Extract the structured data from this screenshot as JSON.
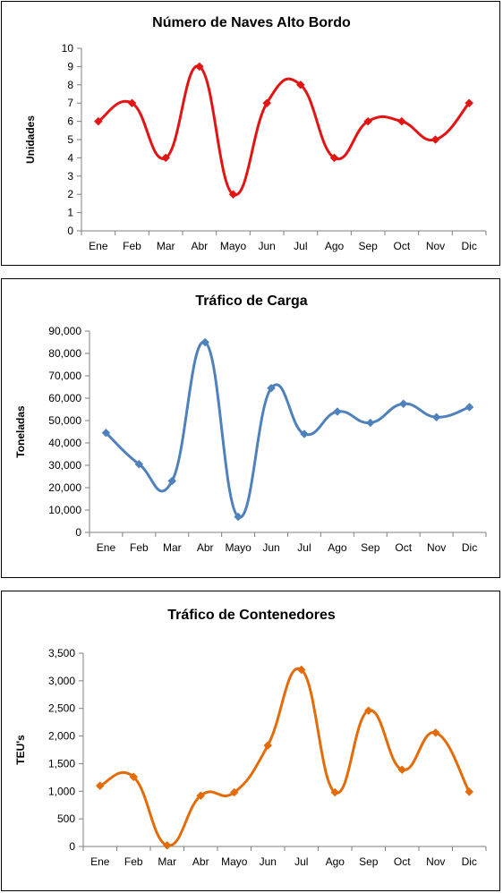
{
  "chart_data": [
    {
      "type": "line",
      "title": "Número de Naves Alto Bordo",
      "ylabel": "Unidades",
      "xlabel": "",
      "categories": [
        "Ene",
        "Feb",
        "Mar",
        "Abr",
        "Mayo",
        "Jun",
        "Jul",
        "Ago",
        "Sep",
        "Oct",
        "Nov",
        "Dic"
      ],
      "series": [
        {
          "values": [
            6,
            7,
            4,
            9,
            2,
            7,
            8,
            4,
            6,
            6,
            5,
            7
          ]
        }
      ],
      "ylim": [
        0,
        10
      ],
      "yticks": [
        "0",
        "1",
        "2",
        "3",
        "4",
        "5",
        "6",
        "7",
        "8",
        "9",
        "10"
      ],
      "ytick_values": [
        0,
        1,
        2,
        3,
        4,
        5,
        6,
        7,
        8,
        9,
        10
      ],
      "color": "#e31414",
      "smooth": true,
      "grid": false,
      "marker": "diamond"
    },
    {
      "type": "line",
      "title": "Tráfico de Carga",
      "ylabel": "Toneladas",
      "xlabel": "",
      "categories": [
        "Ene",
        "Feb",
        "Mar",
        "Abr",
        "Mayo",
        "Jun",
        "Jul",
        "Ago",
        "Sep",
        "Oct",
        "Nov",
        "Dic"
      ],
      "series": [
        {
          "values": [
            44500,
            30500,
            23000,
            85000,
            7000,
            64500,
            44000,
            54000,
            49000,
            57500,
            51500,
            56000
          ]
        }
      ],
      "ylim": [
        0,
        90000
      ],
      "yticks": [
        "0",
        "10,000",
        "20,000",
        "30,000",
        "40,000",
        "50,000",
        "60,000",
        "70,000",
        "80,000",
        "90,000"
      ],
      "ytick_values": [
        0,
        10000,
        20000,
        30000,
        40000,
        50000,
        60000,
        70000,
        80000,
        90000
      ],
      "color": "#4f81bd",
      "smooth": true,
      "grid": false,
      "marker": "diamond"
    },
    {
      "type": "line",
      "title": "Tráfico de Contenedores",
      "ylabel": "TEU's",
      "xlabel": "",
      "categories": [
        "Ene",
        "Feb",
        "Mar",
        "Abr",
        "Mayo",
        "Jun",
        "Jul",
        "Ago",
        "Sep",
        "Oct",
        "Nov",
        "Dic"
      ],
      "series": [
        {
          "values": [
            1100,
            1260,
            20,
            920,
            980,
            1830,
            3200,
            980,
            2460,
            1390,
            2060,
            990
          ]
        }
      ],
      "ylim": [
        0,
        3500
      ],
      "yticks": [
        "0",
        "500",
        "1,000",
        "1,500",
        "2,000",
        "2,500",
        "3,000",
        "3,500"
      ],
      "ytick_values": [
        0,
        500,
        1000,
        1500,
        2000,
        2500,
        3000,
        3500
      ],
      "color": "#e36c09",
      "smooth": true,
      "grid": false,
      "marker": "diamond"
    }
  ]
}
